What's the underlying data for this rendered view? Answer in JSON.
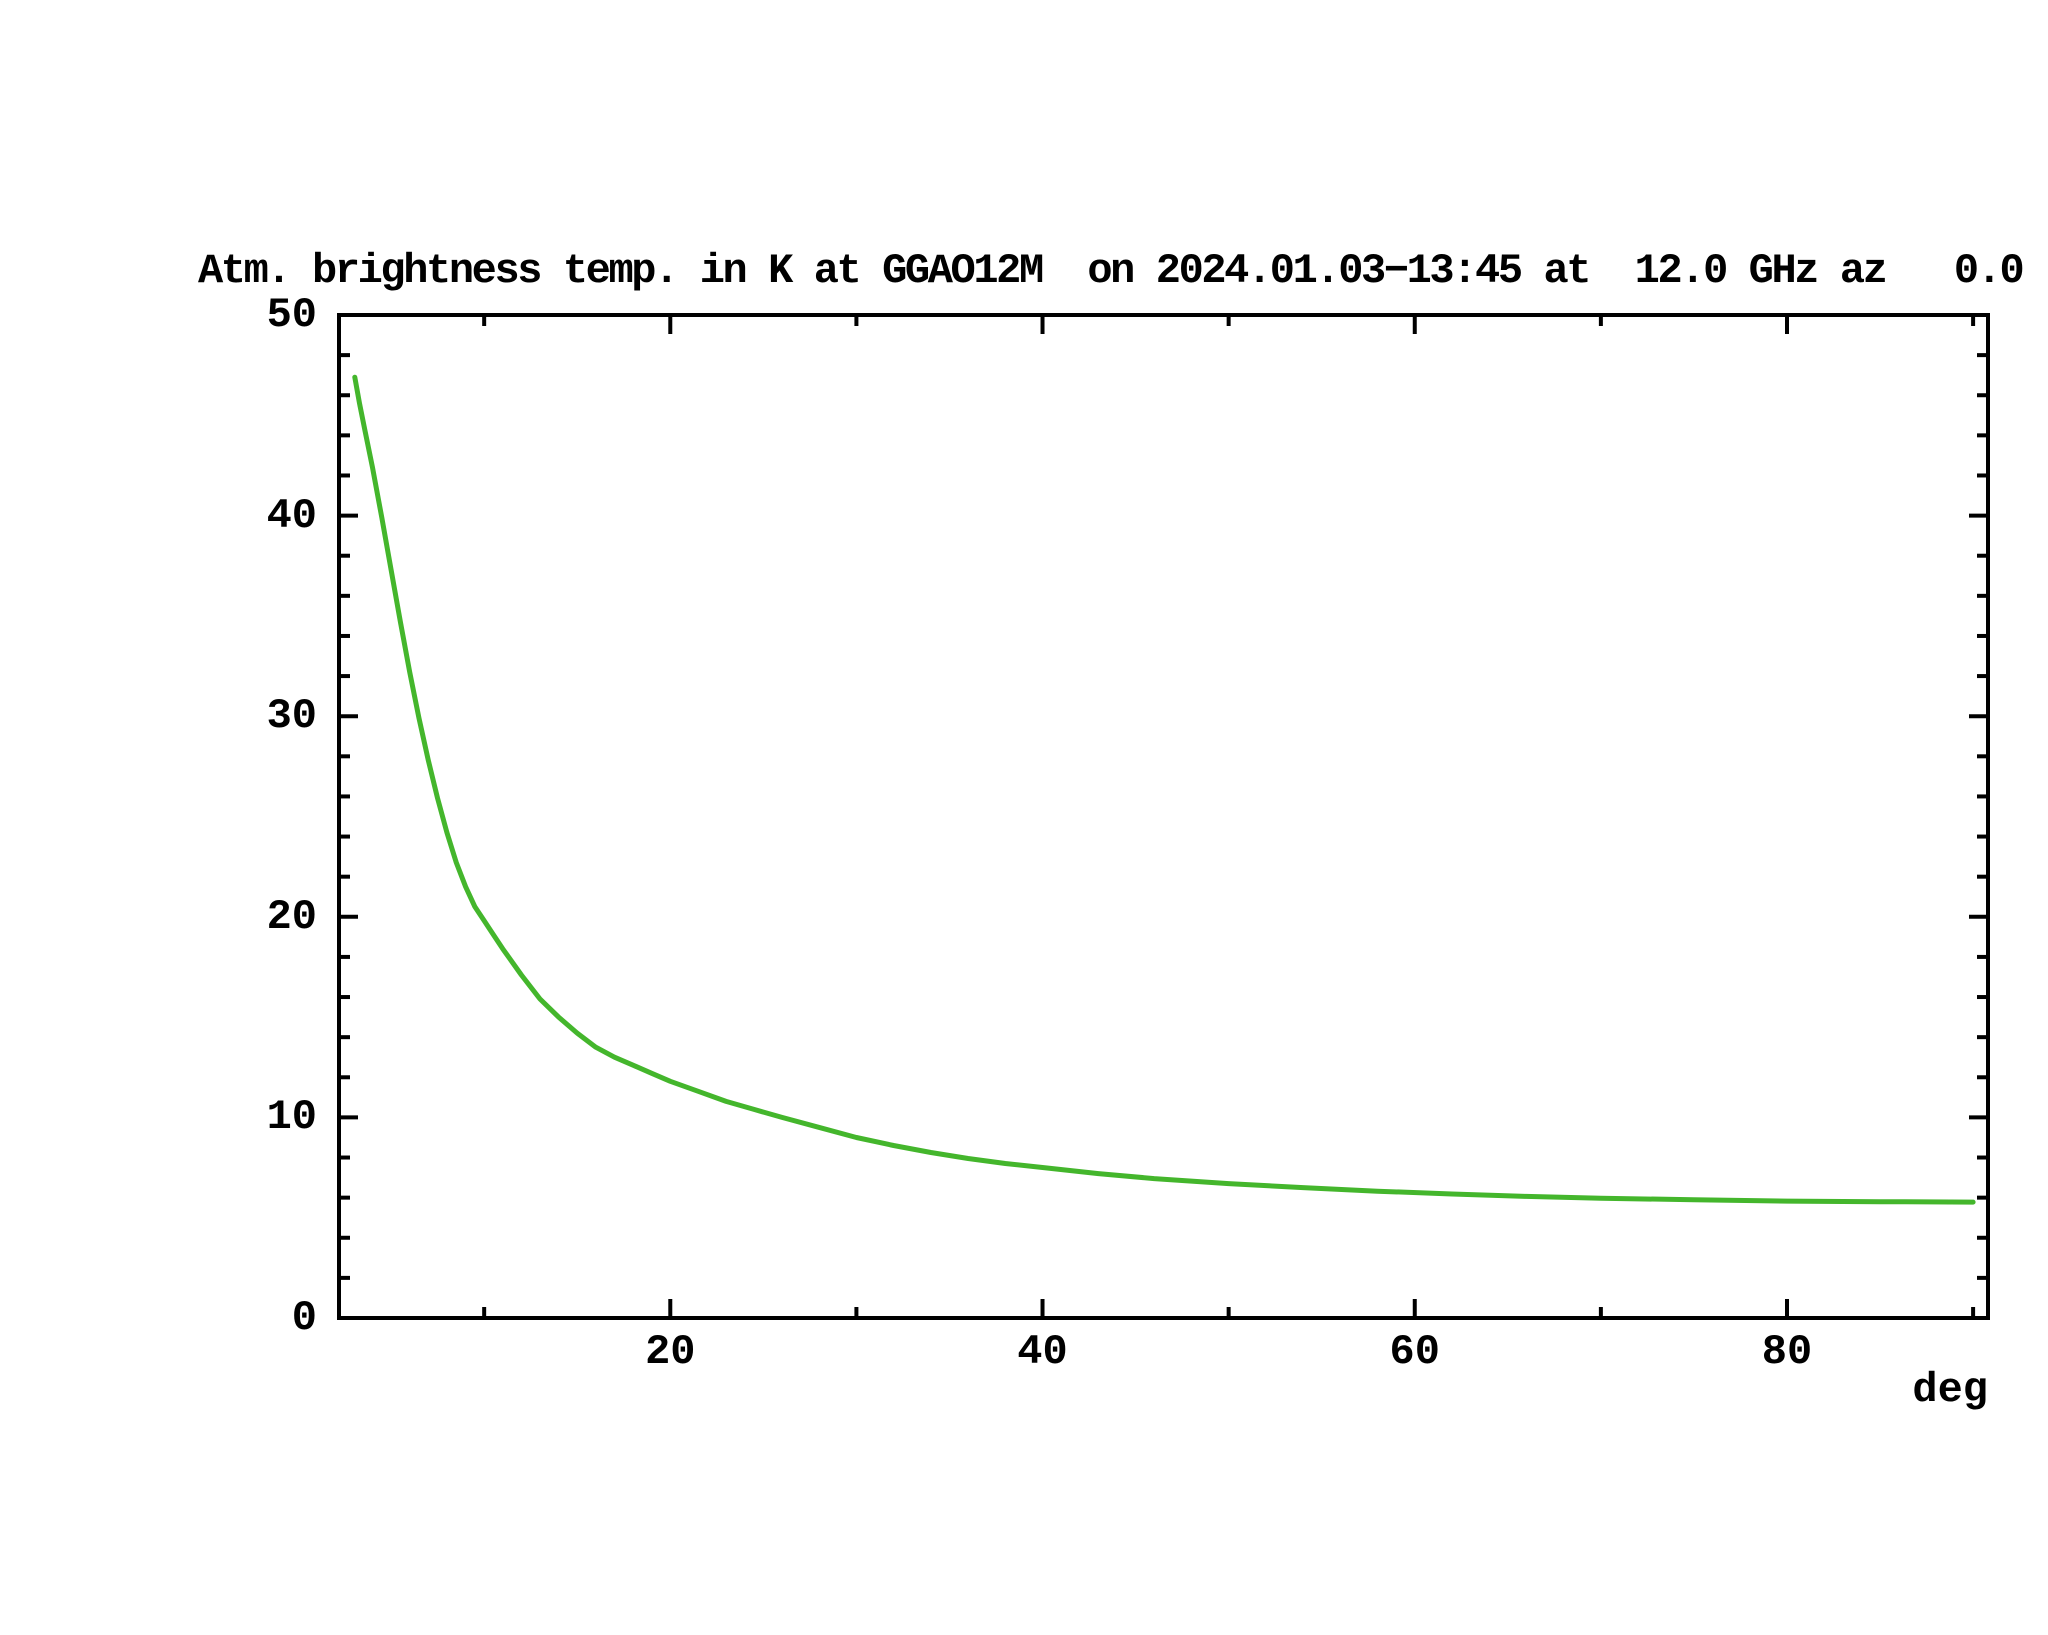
{
  "chart_data": {
    "type": "line",
    "title": "Atm. brightness temp. in K at GGAO12M  on 2024.01.03−13:45 at  12.0 GHz az   0.0",
    "station": "GGAO12M",
    "datetime": "2024.01.03-13:45",
    "frequency_ghz": 12.0,
    "azimuth_deg": 0.0,
    "xunit": "deg",
    "ylabel_in_title": "Atm. brightness temp. in K",
    "xlim": [
      2.2,
      90.8
    ],
    "ylim": [
      0,
      50
    ],
    "x_major_ticks": [
      20,
      40,
      60,
      80
    ],
    "x_minor_ticks": [
      10,
      30,
      50,
      70,
      90
    ],
    "y_major_ticks": [
      0,
      10,
      20,
      30,
      40,
      50
    ],
    "y_minor_step": 2,
    "grid": false,
    "legend": "none",
    "colors": {
      "curve": "#44b62c",
      "axis": "#000000",
      "text": "#000000",
      "background": "#ffffff"
    },
    "series": [
      {
        "name": "atmospheric-brightness-temperature",
        "color": "#44b62c",
        "x": [
          3.05,
          3.3,
          3.6,
          4.0,
          4.5,
          5.0,
          5.5,
          6.0,
          6.5,
          7.0,
          7.5,
          8.0,
          8.5,
          9.0,
          9.5,
          10.0,
          10.5,
          11.0,
          12.0,
          13.0,
          14.0,
          15.0,
          16.0,
          17.0,
          18.0,
          19.0,
          20.0,
          21.5,
          23.0,
          24.5,
          26.0,
          28.0,
          30.0,
          32.0,
          34.0,
          36.0,
          38.0,
          40.0,
          43.0,
          46.0,
          50.0,
          54.0,
          58.0,
          62.0,
          66.0,
          70.0,
          75.0,
          80.0,
          85.0,
          90.0
        ],
        "y": [
          46.9,
          45.6,
          44.2,
          42.4,
          39.9,
          37.3,
          34.7,
          32.2,
          29.9,
          27.8,
          25.9,
          24.2,
          22.7,
          21.5,
          20.5,
          19.8,
          19.1,
          18.4,
          17.1,
          15.9,
          15.0,
          14.2,
          13.5,
          13.0,
          12.6,
          12.2,
          11.8,
          11.3,
          10.8,
          10.4,
          10.0,
          9.5,
          9.0,
          8.6,
          8.25,
          7.95,
          7.7,
          7.5,
          7.2,
          6.95,
          6.7,
          6.5,
          6.32,
          6.18,
          6.06,
          5.97,
          5.89,
          5.83,
          5.8,
          5.78
        ]
      }
    ]
  }
}
